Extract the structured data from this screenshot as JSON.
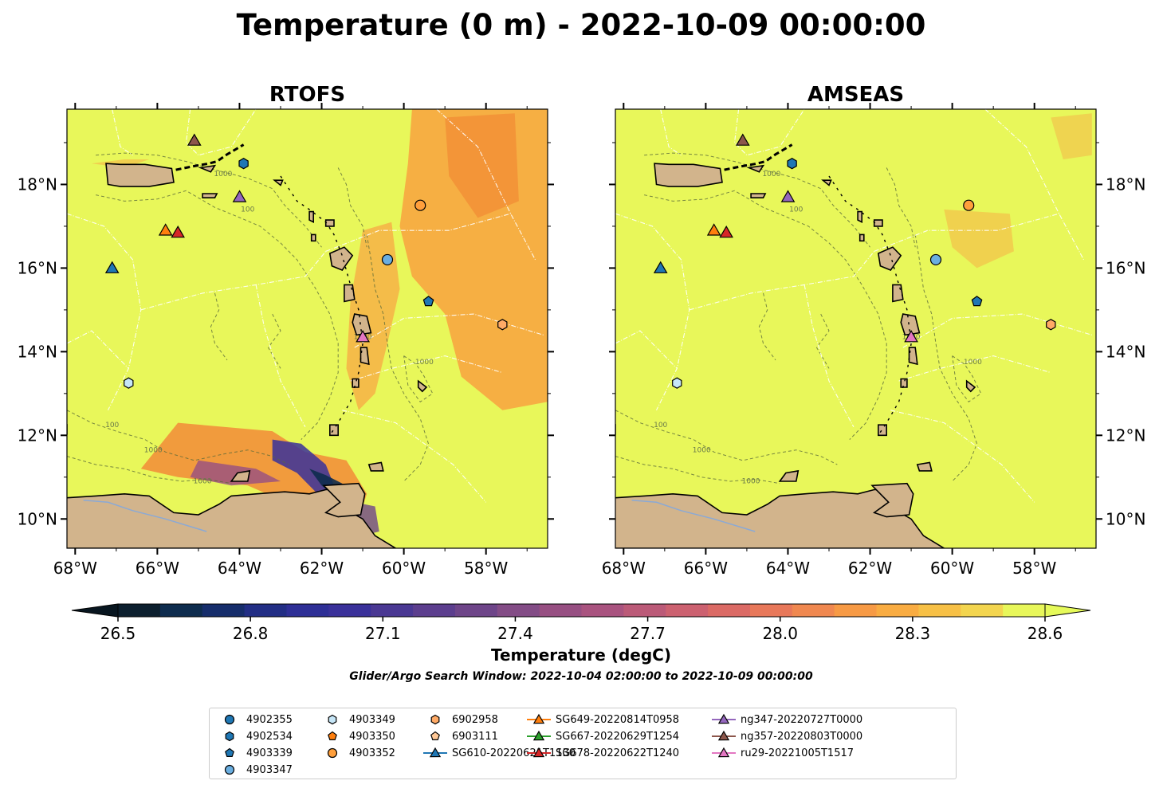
{
  "title": "Temperature (0 m) - 2022-10-09 00:00:00",
  "subtitle": "Glider/Argo Search Window: 2022-10-04 02:00:00 to 2022-10-09 00:00:00",
  "colorbar": {
    "label": "Temperature (degC)",
    "min": 26.5,
    "max": 28.6,
    "ticks": [
      "26.5",
      "26.8",
      "27.1",
      "27.4",
      "27.7",
      "28.0",
      "28.3",
      "28.6"
    ],
    "colors": [
      "#0c1f2e",
      "#0e2c4e",
      "#162d6b",
      "#222e85",
      "#2e2f96",
      "#3a319a",
      "#4a3893",
      "#5c3e8e",
      "#6e4589",
      "#834c86",
      "#974f82",
      "#a9537f",
      "#bb5a78",
      "#cc6170",
      "#db6a65",
      "#e8785a",
      "#f08850",
      "#f79a45",
      "#f9ac42",
      "#f7c046",
      "#f3d54f",
      "#e8f75a"
    ],
    "extend_low_color": "#081620",
    "extend_high_color": "#e6fa5a"
  },
  "chart_data": [
    {
      "type": "map",
      "title": "RTOFS",
      "lon_range": [
        -68.2,
        -56.5
      ],
      "lat_range": [
        9.3,
        19.8
      ],
      "x_ticks": [
        "68°W",
        "66°W",
        "64°W",
        "62°W",
        "60°W",
        "58°W"
      ],
      "x_tick_values": [
        -68,
        -66,
        -64,
        -62,
        -60,
        -58
      ],
      "y_ticks": [
        "10°N",
        "12°N",
        "14°N",
        "16°N",
        "18°N"
      ],
      "y_tick_values": [
        10,
        12,
        14,
        16,
        18
      ],
      "contour_labels": [
        "1000",
        "100",
        "1000",
        "1000",
        "100",
        "1000",
        "1000"
      ],
      "markers": [
        {
          "name": "4902534",
          "lon": -63.9,
          "lat": 18.5
        },
        {
          "name": "4903352",
          "lon": -59.6,
          "lat": 17.5
        },
        {
          "name": "4903347",
          "lon": -60.4,
          "lat": 16.2
        },
        {
          "name": "4903339",
          "lon": -59.4,
          "lat": 15.2
        },
        {
          "name": "6902958",
          "lon": -57.6,
          "lat": 14.65
        },
        {
          "name": "4903349",
          "lon": -66.7,
          "lat": 13.25
        },
        {
          "name": "SG610-20220621T1130",
          "lon": -67.1,
          "lat": 16.0
        },
        {
          "name": "SG649-20220814T0958",
          "lon": -65.8,
          "lat": 16.9
        },
        {
          "name": "SG678-20220622T1240",
          "lon": -65.5,
          "lat": 16.85
        },
        {
          "name": "ng347-20220727T0000",
          "lon": -64.0,
          "lat": 17.7
        },
        {
          "name": "ng357-20220803T0000",
          "lon": -65.1,
          "lat": 19.05
        },
        {
          "name": "ru29-20221005T1517",
          "lon": -61.0,
          "lat": 14.35
        }
      ]
    },
    {
      "type": "map",
      "title": "AMSEAS",
      "lon_range": [
        -68.2,
        -56.5
      ],
      "lat_range": [
        9.3,
        19.8
      ],
      "x_ticks": [
        "68°W",
        "66°W",
        "64°W",
        "62°W",
        "60°W",
        "58°W"
      ],
      "x_tick_values": [
        -68,
        -66,
        -64,
        -62,
        -60,
        -58
      ],
      "y_ticks": [
        "10°N",
        "12°N",
        "14°N",
        "16°N",
        "18°N"
      ],
      "y_tick_values": [
        10,
        12,
        14,
        16,
        18
      ],
      "contour_labels": [
        "1000",
        "100",
        "1000",
        "1000",
        "100",
        "1000",
        "1000"
      ],
      "markers": [
        {
          "name": "4902534",
          "lon": -63.9,
          "lat": 18.5
        },
        {
          "name": "4903352",
          "lon": -59.6,
          "lat": 17.5
        },
        {
          "name": "4903347",
          "lon": -60.4,
          "lat": 16.2
        },
        {
          "name": "4903339",
          "lon": -59.4,
          "lat": 15.2
        },
        {
          "name": "6902958",
          "lon": -57.6,
          "lat": 14.65
        },
        {
          "name": "4903349",
          "lon": -66.7,
          "lat": 13.25
        },
        {
          "name": "SG610-20220621T1130",
          "lon": -67.1,
          "lat": 16.0
        },
        {
          "name": "SG649-20220814T0958",
          "lon": -65.8,
          "lat": 16.9
        },
        {
          "name": "SG678-20220622T1240",
          "lon": -65.5,
          "lat": 16.85
        },
        {
          "name": "ng347-20220727T0000",
          "lon": -64.0,
          "lat": 17.7
        },
        {
          "name": "ng357-20220803T0000",
          "lon": -65.1,
          "lat": 19.05
        },
        {
          "name": "ru29-20221005T1517",
          "lon": -61.0,
          "lat": 14.35
        }
      ]
    }
  ],
  "legend": {
    "entries": [
      {
        "label": "4902355",
        "shape": "circle",
        "color": "#1f77b4",
        "line": false
      },
      {
        "label": "4902534",
        "shape": "hexagon",
        "color": "#1f77b4",
        "line": false
      },
      {
        "label": "4903339",
        "shape": "pentagon",
        "color": "#1f77b4",
        "line": false
      },
      {
        "label": "4903347",
        "shape": "circle",
        "color": "#6aaee0",
        "line": false
      },
      {
        "label": "4903349",
        "shape": "hexagon",
        "color": "#c6e6f7",
        "line": false
      },
      {
        "label": "4903350",
        "shape": "pentagon",
        "color": "#ff7f0e",
        "line": false
      },
      {
        "label": "4903352",
        "shape": "circle",
        "color": "#ff9f3c",
        "line": false
      },
      {
        "label": "6902958",
        "shape": "hexagon",
        "color": "#ffaa66",
        "line": false
      },
      {
        "label": "6903111",
        "shape": "pentagon",
        "color": "#ffc896",
        "line": false
      },
      {
        "label": "SG610-20220621T1130",
        "shape": "triangle",
        "color": "#1f77b4",
        "line": true
      },
      {
        "label": "SG649-20220814T0958",
        "shape": "triangle",
        "color": "#ff7f0e",
        "line": true
      },
      {
        "label": "SG667-20220629T1254",
        "shape": "triangle",
        "color": "#2ca02c",
        "line": true
      },
      {
        "label": "SG678-20220622T1240",
        "shape": "triangle",
        "color": "#d62728",
        "line": true
      },
      {
        "label": "ng347-20220727T0000",
        "shape": "triangle",
        "color": "#9467bd",
        "line": true
      },
      {
        "label": "ng357-20220803T0000",
        "shape": "triangle",
        "color": "#8c564b",
        "line": true
      },
      {
        "label": "ru29-20221005T1517",
        "shape": "triangle",
        "color": "#e377c2",
        "line": true
      }
    ]
  },
  "colors": {
    "land": "#d2b48c",
    "ocean_base": "#e8f75a",
    "ocean_warm": "#f7a640",
    "contour": "#5a6a3a",
    "eez_lines": "#ffffff"
  }
}
